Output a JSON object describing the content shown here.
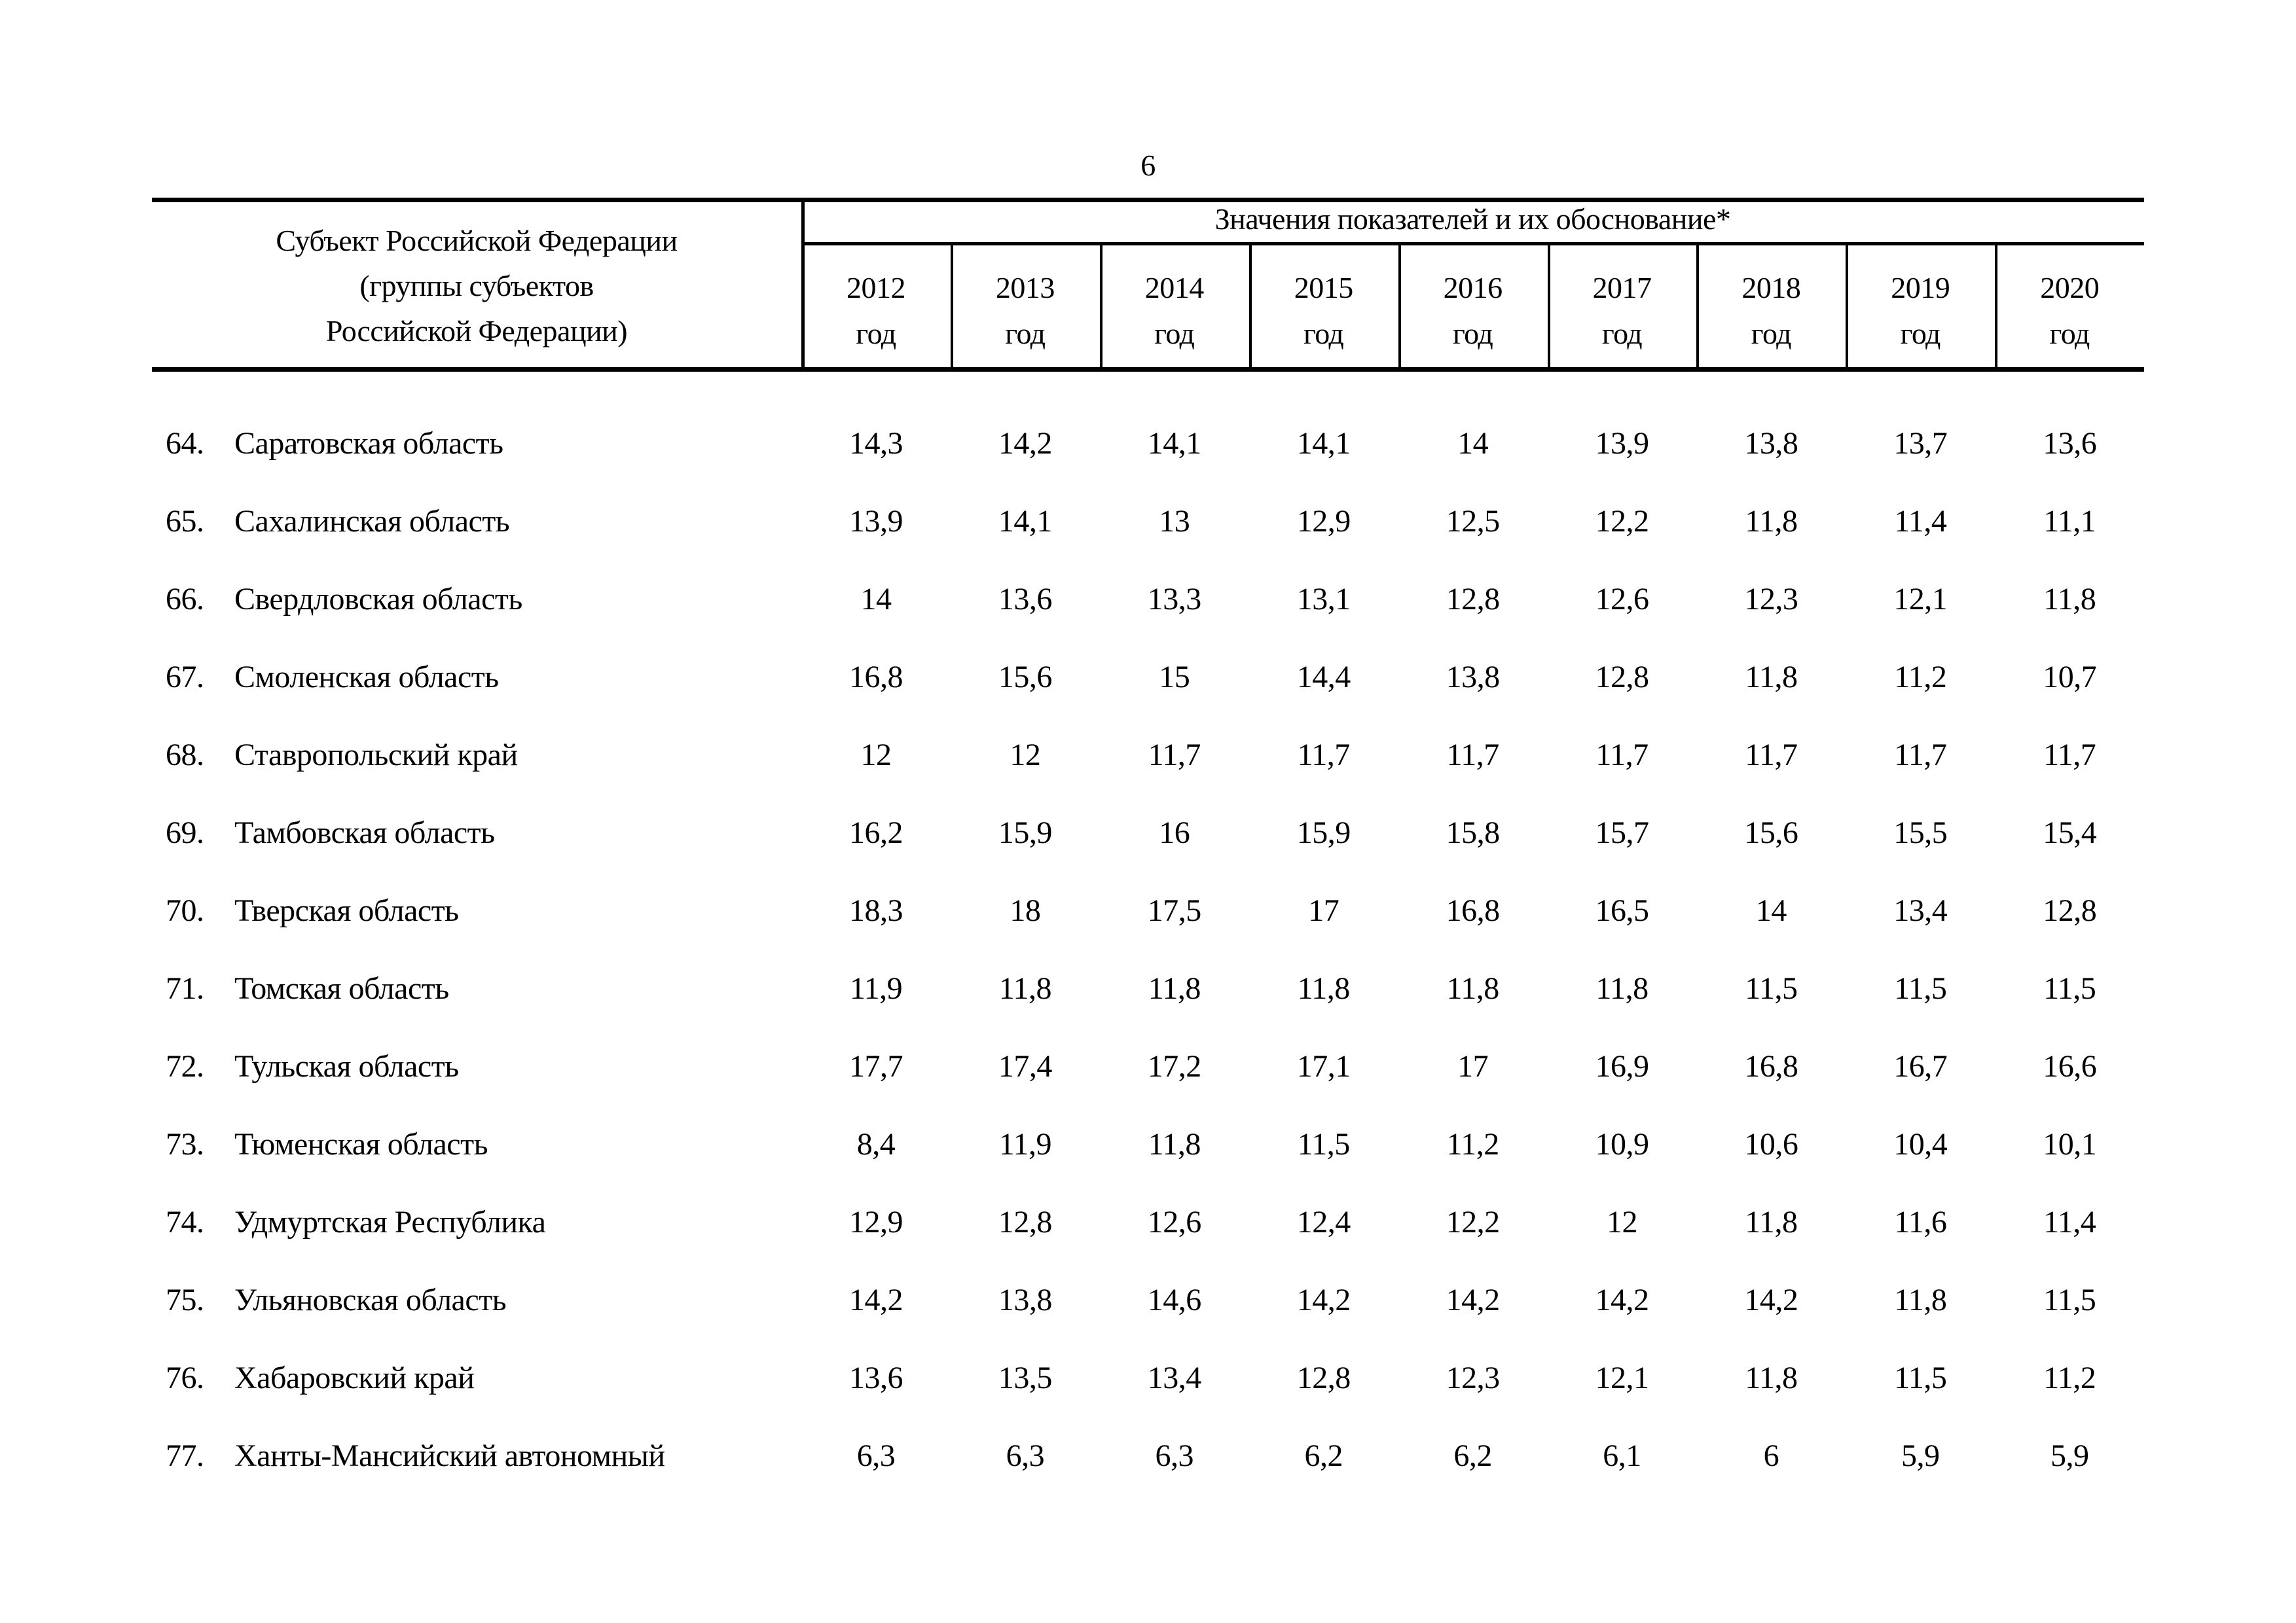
{
  "page": {
    "number": "6"
  },
  "table": {
    "header": {
      "subject_col_lines": [
        "Субъект Российской Федерации",
        "(группы субъектов",
        "Российской Федерации)"
      ],
      "values_title": "Значения показателей и их обоснование*",
      "year_label": "год",
      "years": [
        "2012",
        "2013",
        "2014",
        "2015",
        "2016",
        "2017",
        "2018",
        "2019",
        "2020"
      ]
    },
    "rows": [
      {
        "num": "64.",
        "name": "Саратовская область",
        "values": [
          "14,3",
          "14,2",
          "14,1",
          "14,1",
          "14",
          "13,9",
          "13,8",
          "13,7",
          "13,6"
        ]
      },
      {
        "num": "65.",
        "name": "Сахалинская область",
        "values": [
          "13,9",
          "14,1",
          "13",
          "12,9",
          "12,5",
          "12,2",
          "11,8",
          "11,4",
          "11,1"
        ]
      },
      {
        "num": "66.",
        "name": "Свердловская область",
        "values": [
          "14",
          "13,6",
          "13,3",
          "13,1",
          "12,8",
          "12,6",
          "12,3",
          "12,1",
          "11,8"
        ]
      },
      {
        "num": "67.",
        "name": "Смоленская область",
        "values": [
          "16,8",
          "15,6",
          "15",
          "14,4",
          "13,8",
          "12,8",
          "11,8",
          "11,2",
          "10,7"
        ]
      },
      {
        "num": "68.",
        "name": "Ставропольский край",
        "values": [
          "12",
          "12",
          "11,7",
          "11,7",
          "11,7",
          "11,7",
          "11,7",
          "11,7",
          "11,7"
        ]
      },
      {
        "num": "69.",
        "name": "Тамбовская область",
        "values": [
          "16,2",
          "15,9",
          "16",
          "15,9",
          "15,8",
          "15,7",
          "15,6",
          "15,5",
          "15,4"
        ]
      },
      {
        "num": "70.",
        "name": "Тверская область",
        "values": [
          "18,3",
          "18",
          "17,5",
          "17",
          "16,8",
          "16,5",
          "14",
          "13,4",
          "12,8"
        ]
      },
      {
        "num": "71.",
        "name": "Томская область",
        "values": [
          "11,9",
          "11,8",
          "11,8",
          "11,8",
          "11,8",
          "11,8",
          "11,5",
          "11,5",
          "11,5"
        ]
      },
      {
        "num": "72.",
        "name": "Тульская область",
        "values": [
          "17,7",
          "17,4",
          "17,2",
          "17,1",
          "17",
          "16,9",
          "16,8",
          "16,7",
          "16,6"
        ]
      },
      {
        "num": "73.",
        "name": "Тюменская область",
        "values": [
          "8,4",
          "11,9",
          "11,8",
          "11,5",
          "11,2",
          "10,9",
          "10,6",
          "10,4",
          "10,1"
        ]
      },
      {
        "num": "74.",
        "name": "Удмуртская Республика",
        "values": [
          "12,9",
          "12,8",
          "12,6",
          "12,4",
          "12,2",
          "12",
          "11,8",
          "11,6",
          "11,4"
        ]
      },
      {
        "num": "75.",
        "name": "Ульяновская область",
        "values": [
          "14,2",
          "13,8",
          "14,6",
          "14,2",
          "14,2",
          "14,2",
          "14,2",
          "11,8",
          "11,5"
        ]
      },
      {
        "num": "76.",
        "name": "Хабаровский край",
        "values": [
          "13,6",
          "13,5",
          "13,4",
          "12,8",
          "12,3",
          "12,1",
          "11,8",
          "11,5",
          "11,2"
        ]
      },
      {
        "num": "77.",
        "name": "Ханты-Мансийский автономный",
        "values": [
          "6,3",
          "6,3",
          "6,3",
          "6,2",
          "6,2",
          "6,1",
          "6",
          "5,9",
          "5,9"
        ]
      }
    ]
  }
}
